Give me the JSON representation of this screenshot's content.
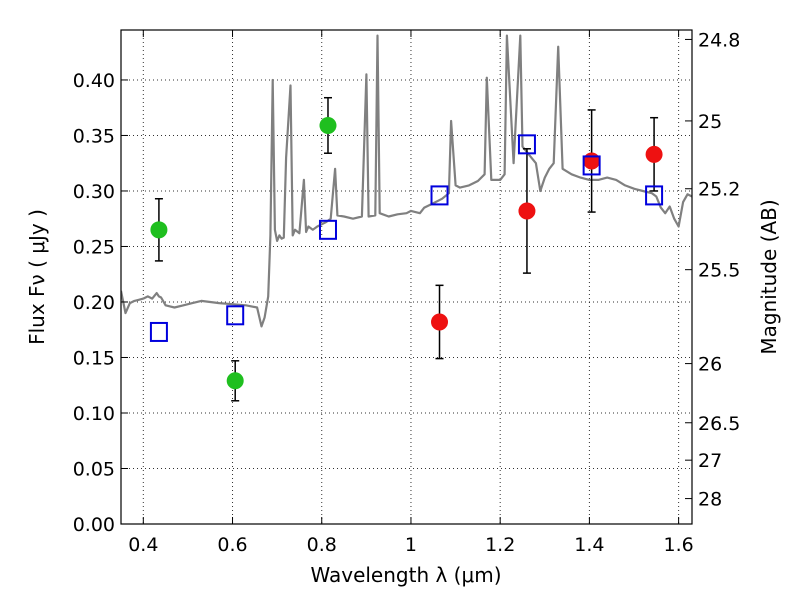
{
  "chart_data": {
    "type": "scatter",
    "xlabel": "Wavelength  λ (μm)",
    "ylabel": "Flux  Fν  ( μJy )",
    "y2label": "Magnitude (AB)",
    "xlim": [
      0.35,
      1.63
    ],
    "ylim": [
      0.0,
      0.445
    ],
    "grid": true,
    "x_ticks": [
      0.4,
      0.6,
      0.8,
      1.0,
      1.2,
      1.4,
      1.6
    ],
    "x_tick_labels": [
      "0.4",
      "0.6",
      "0.8",
      "1",
      "1.2",
      "1.4",
      "1.6"
    ],
    "y_ticks": [
      0.0,
      0.05,
      0.1,
      0.15,
      0.2,
      0.25,
      0.3,
      0.35,
      0.4
    ],
    "y_tick_labels": [
      "0.00",
      "0.05",
      "0.10",
      "0.15",
      "0.20",
      "0.25",
      "0.30",
      "0.35",
      "0.40"
    ],
    "y2_ticks": [
      {
        "label": "24.8",
        "flux": 0.4365
      },
      {
        "label": "25",
        "flux": 0.3631
      },
      {
        "label": "25.2",
        "flux": 0.302
      },
      {
        "label": "25.5",
        "flux": 0.2291
      },
      {
        "label": "26",
        "flux": 0.1445
      },
      {
        "label": "26.5",
        "flux": 0.0912
      },
      {
        "label": "27",
        "flux": 0.0575
      },
      {
        "label": "28",
        "flux": 0.0229
      }
    ],
    "series": [
      {
        "style": "marker",
        "color": "#1fbf1f",
        "points": [
          {
            "x": 0.435,
            "y": 0.265,
            "err": 0.028
          },
          {
            "x": 0.606,
            "y": 0.129,
            "err": 0.018
          },
          {
            "x": 0.814,
            "y": 0.359,
            "err": 0.025
          }
        ]
      },
      {
        "style": "marker",
        "color": "#ee1111",
        "points": [
          {
            "x": 1.064,
            "y": 0.182,
            "err": 0.033
          },
          {
            "x": 1.26,
            "y": 0.282,
            "err": 0.056
          },
          {
            "x": 1.405,
            "y": 0.327,
            "err": 0.046
          },
          {
            "x": 1.545,
            "y": 0.333,
            "err": 0.033
          }
        ]
      },
      {
        "style": "open-square",
        "color": "#0000dd",
        "points": [
          {
            "x": 0.435,
            "y": 0.173
          },
          {
            "x": 0.606,
            "y": 0.188
          },
          {
            "x": 0.814,
            "y": 0.265
          },
          {
            "x": 1.064,
            "y": 0.296
          },
          {
            "x": 1.26,
            "y": 0.342
          },
          {
            "x": 1.405,
            "y": 0.323
          },
          {
            "x": 1.545,
            "y": 0.296
          }
        ]
      },
      {
        "style": "line",
        "color": "#808080",
        "points": [
          [
            0.35,
            0.21
          ],
          [
            0.36,
            0.19
          ],
          [
            0.37,
            0.199
          ],
          [
            0.38,
            0.201
          ],
          [
            0.39,
            0.202
          ],
          [
            0.4,
            0.203
          ],
          [
            0.41,
            0.205
          ],
          [
            0.42,
            0.203
          ],
          [
            0.43,
            0.208
          ],
          [
            0.435,
            0.205
          ],
          [
            0.44,
            0.204
          ],
          [
            0.45,
            0.197
          ],
          [
            0.46,
            0.196
          ],
          [
            0.47,
            0.195
          ],
          [
            0.49,
            0.197
          ],
          [
            0.51,
            0.199
          ],
          [
            0.53,
            0.201
          ],
          [
            0.55,
            0.2
          ],
          [
            0.57,
            0.199
          ],
          [
            0.6,
            0.198
          ],
          [
            0.63,
            0.197
          ],
          [
            0.655,
            0.195
          ],
          [
            0.665,
            0.178
          ],
          [
            0.672,
            0.186
          ],
          [
            0.68,
            0.205
          ],
          [
            0.685,
            0.26
          ],
          [
            0.69,
            0.4
          ],
          [
            0.695,
            0.265
          ],
          [
            0.7,
            0.255
          ],
          [
            0.705,
            0.26
          ],
          [
            0.71,
            0.257
          ],
          [
            0.715,
            0.258
          ],
          [
            0.72,
            0.33
          ],
          [
            0.73,
            0.395
          ],
          [
            0.735,
            0.26
          ],
          [
            0.74,
            0.265
          ],
          [
            0.75,
            0.262
          ],
          [
            0.76,
            0.31
          ],
          [
            0.765,
            0.263
          ],
          [
            0.77,
            0.268
          ],
          [
            0.78,
            0.265
          ],
          [
            0.79,
            0.268
          ],
          [
            0.8,
            0.27
          ],
          [
            0.81,
            0.272
          ],
          [
            0.82,
            0.275
          ],
          [
            0.83,
            0.32
          ],
          [
            0.835,
            0.278
          ],
          [
            0.85,
            0.277
          ],
          [
            0.87,
            0.275
          ],
          [
            0.89,
            0.277
          ],
          [
            0.9,
            0.405
          ],
          [
            0.905,
            0.277
          ],
          [
            0.92,
            0.278
          ],
          [
            0.925,
            0.44
          ],
          [
            0.93,
            0.28
          ],
          [
            0.95,
            0.277
          ],
          [
            0.97,
            0.279
          ],
          [
            0.99,
            0.28
          ],
          [
            1.0,
            0.282
          ],
          [
            1.02,
            0.28
          ],
          [
            1.03,
            0.285
          ],
          [
            1.05,
            0.289
          ],
          [
            1.07,
            0.293
          ],
          [
            1.085,
            0.298
          ],
          [
            1.09,
            0.363
          ],
          [
            1.1,
            0.305
          ],
          [
            1.11,
            0.303
          ],
          [
            1.13,
            0.305
          ],
          [
            1.15,
            0.309
          ],
          [
            1.165,
            0.315
          ],
          [
            1.17,
            0.402
          ],
          [
            1.18,
            0.31
          ],
          [
            1.2,
            0.31
          ],
          [
            1.21,
            0.315
          ],
          [
            1.215,
            0.44
          ],
          [
            1.23,
            0.325
          ],
          [
            1.245,
            0.44
          ],
          [
            1.25,
            0.34
          ],
          [
            1.26,
            0.335
          ],
          [
            1.27,
            0.33
          ],
          [
            1.28,
            0.325
          ],
          [
            1.29,
            0.3
          ],
          [
            1.3,
            0.312
          ],
          [
            1.31,
            0.32
          ],
          [
            1.32,
            0.325
          ],
          [
            1.33,
            0.43
          ],
          [
            1.34,
            0.32
          ],
          [
            1.36,
            0.315
          ],
          [
            1.38,
            0.312
          ],
          [
            1.4,
            0.31
          ],
          [
            1.42,
            0.31
          ],
          [
            1.44,
            0.312
          ],
          [
            1.46,
            0.31
          ],
          [
            1.48,
            0.305
          ],
          [
            1.5,
            0.302
          ],
          [
            1.52,
            0.3
          ],
          [
            1.54,
            0.298
          ],
          [
            1.55,
            0.295
          ],
          [
            1.56,
            0.285
          ],
          [
            1.57,
            0.28
          ],
          [
            1.58,
            0.286
          ],
          [
            1.59,
            0.275
          ],
          [
            1.6,
            0.268
          ],
          [
            1.61,
            0.29
          ],
          [
            1.62,
            0.297
          ],
          [
            1.63,
            0.295
          ]
        ]
      }
    ]
  }
}
